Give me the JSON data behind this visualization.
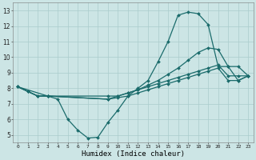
{
  "xlabel": "Humidex (Indice chaleur)",
  "bg_color": "#cce5e5",
  "grid_color": "#aacccc",
  "line_color": "#1a6b6b",
  "xlim": [
    -0.5,
    23.5
  ],
  "ylim": [
    4.5,
    13.5
  ],
  "xticks": [
    0,
    1,
    2,
    3,
    4,
    5,
    6,
    7,
    8,
    9,
    10,
    11,
    12,
    13,
    14,
    15,
    16,
    17,
    18,
    19,
    20,
    21,
    22,
    23
  ],
  "yticks": [
    5,
    6,
    7,
    8,
    9,
    10,
    11,
    12,
    13
  ],
  "line1_x": [
    0,
    1,
    2,
    3,
    4,
    5,
    6,
    7,
    8,
    9,
    10,
    11,
    12,
    13,
    14,
    15,
    16,
    17,
    18,
    19,
    20,
    21,
    22,
    23
  ],
  "line1_y": [
    8.1,
    7.8,
    7.5,
    7.5,
    7.3,
    6.0,
    5.3,
    4.8,
    4.85,
    5.8,
    6.6,
    7.5,
    8.0,
    8.5,
    9.7,
    11.0,
    12.7,
    12.9,
    12.8,
    12.1,
    9.4,
    9.4,
    8.5,
    8.8
  ],
  "line2_x": [
    0,
    1,
    2,
    3,
    9,
    10,
    11,
    12,
    13,
    14,
    15,
    16,
    17,
    18,
    19,
    20,
    21,
    22,
    23
  ],
  "line2_y": [
    8.1,
    7.8,
    7.5,
    7.5,
    7.5,
    7.5,
    7.7,
    7.9,
    8.2,
    8.5,
    8.9,
    9.3,
    9.8,
    10.3,
    10.6,
    10.5,
    9.4,
    9.4,
    8.8
  ],
  "line3_x": [
    0,
    1,
    2,
    3,
    9,
    10,
    11,
    12,
    13,
    14,
    15,
    16,
    17,
    18,
    19,
    20,
    21,
    22,
    23
  ],
  "line3_y": [
    8.1,
    7.8,
    7.5,
    7.5,
    7.3,
    7.4,
    7.5,
    7.7,
    7.9,
    8.1,
    8.3,
    8.5,
    8.7,
    8.9,
    9.1,
    9.3,
    8.5,
    8.5,
    8.8
  ],
  "line4_x": [
    0,
    3,
    9,
    10,
    11,
    12,
    13,
    14,
    15,
    16,
    17,
    18,
    19,
    20,
    21,
    22,
    23
  ],
  "line4_y": [
    8.1,
    7.5,
    7.3,
    7.5,
    7.7,
    7.9,
    8.1,
    8.3,
    8.5,
    8.7,
    8.9,
    9.1,
    9.3,
    9.5,
    8.8,
    8.8,
    8.8
  ]
}
